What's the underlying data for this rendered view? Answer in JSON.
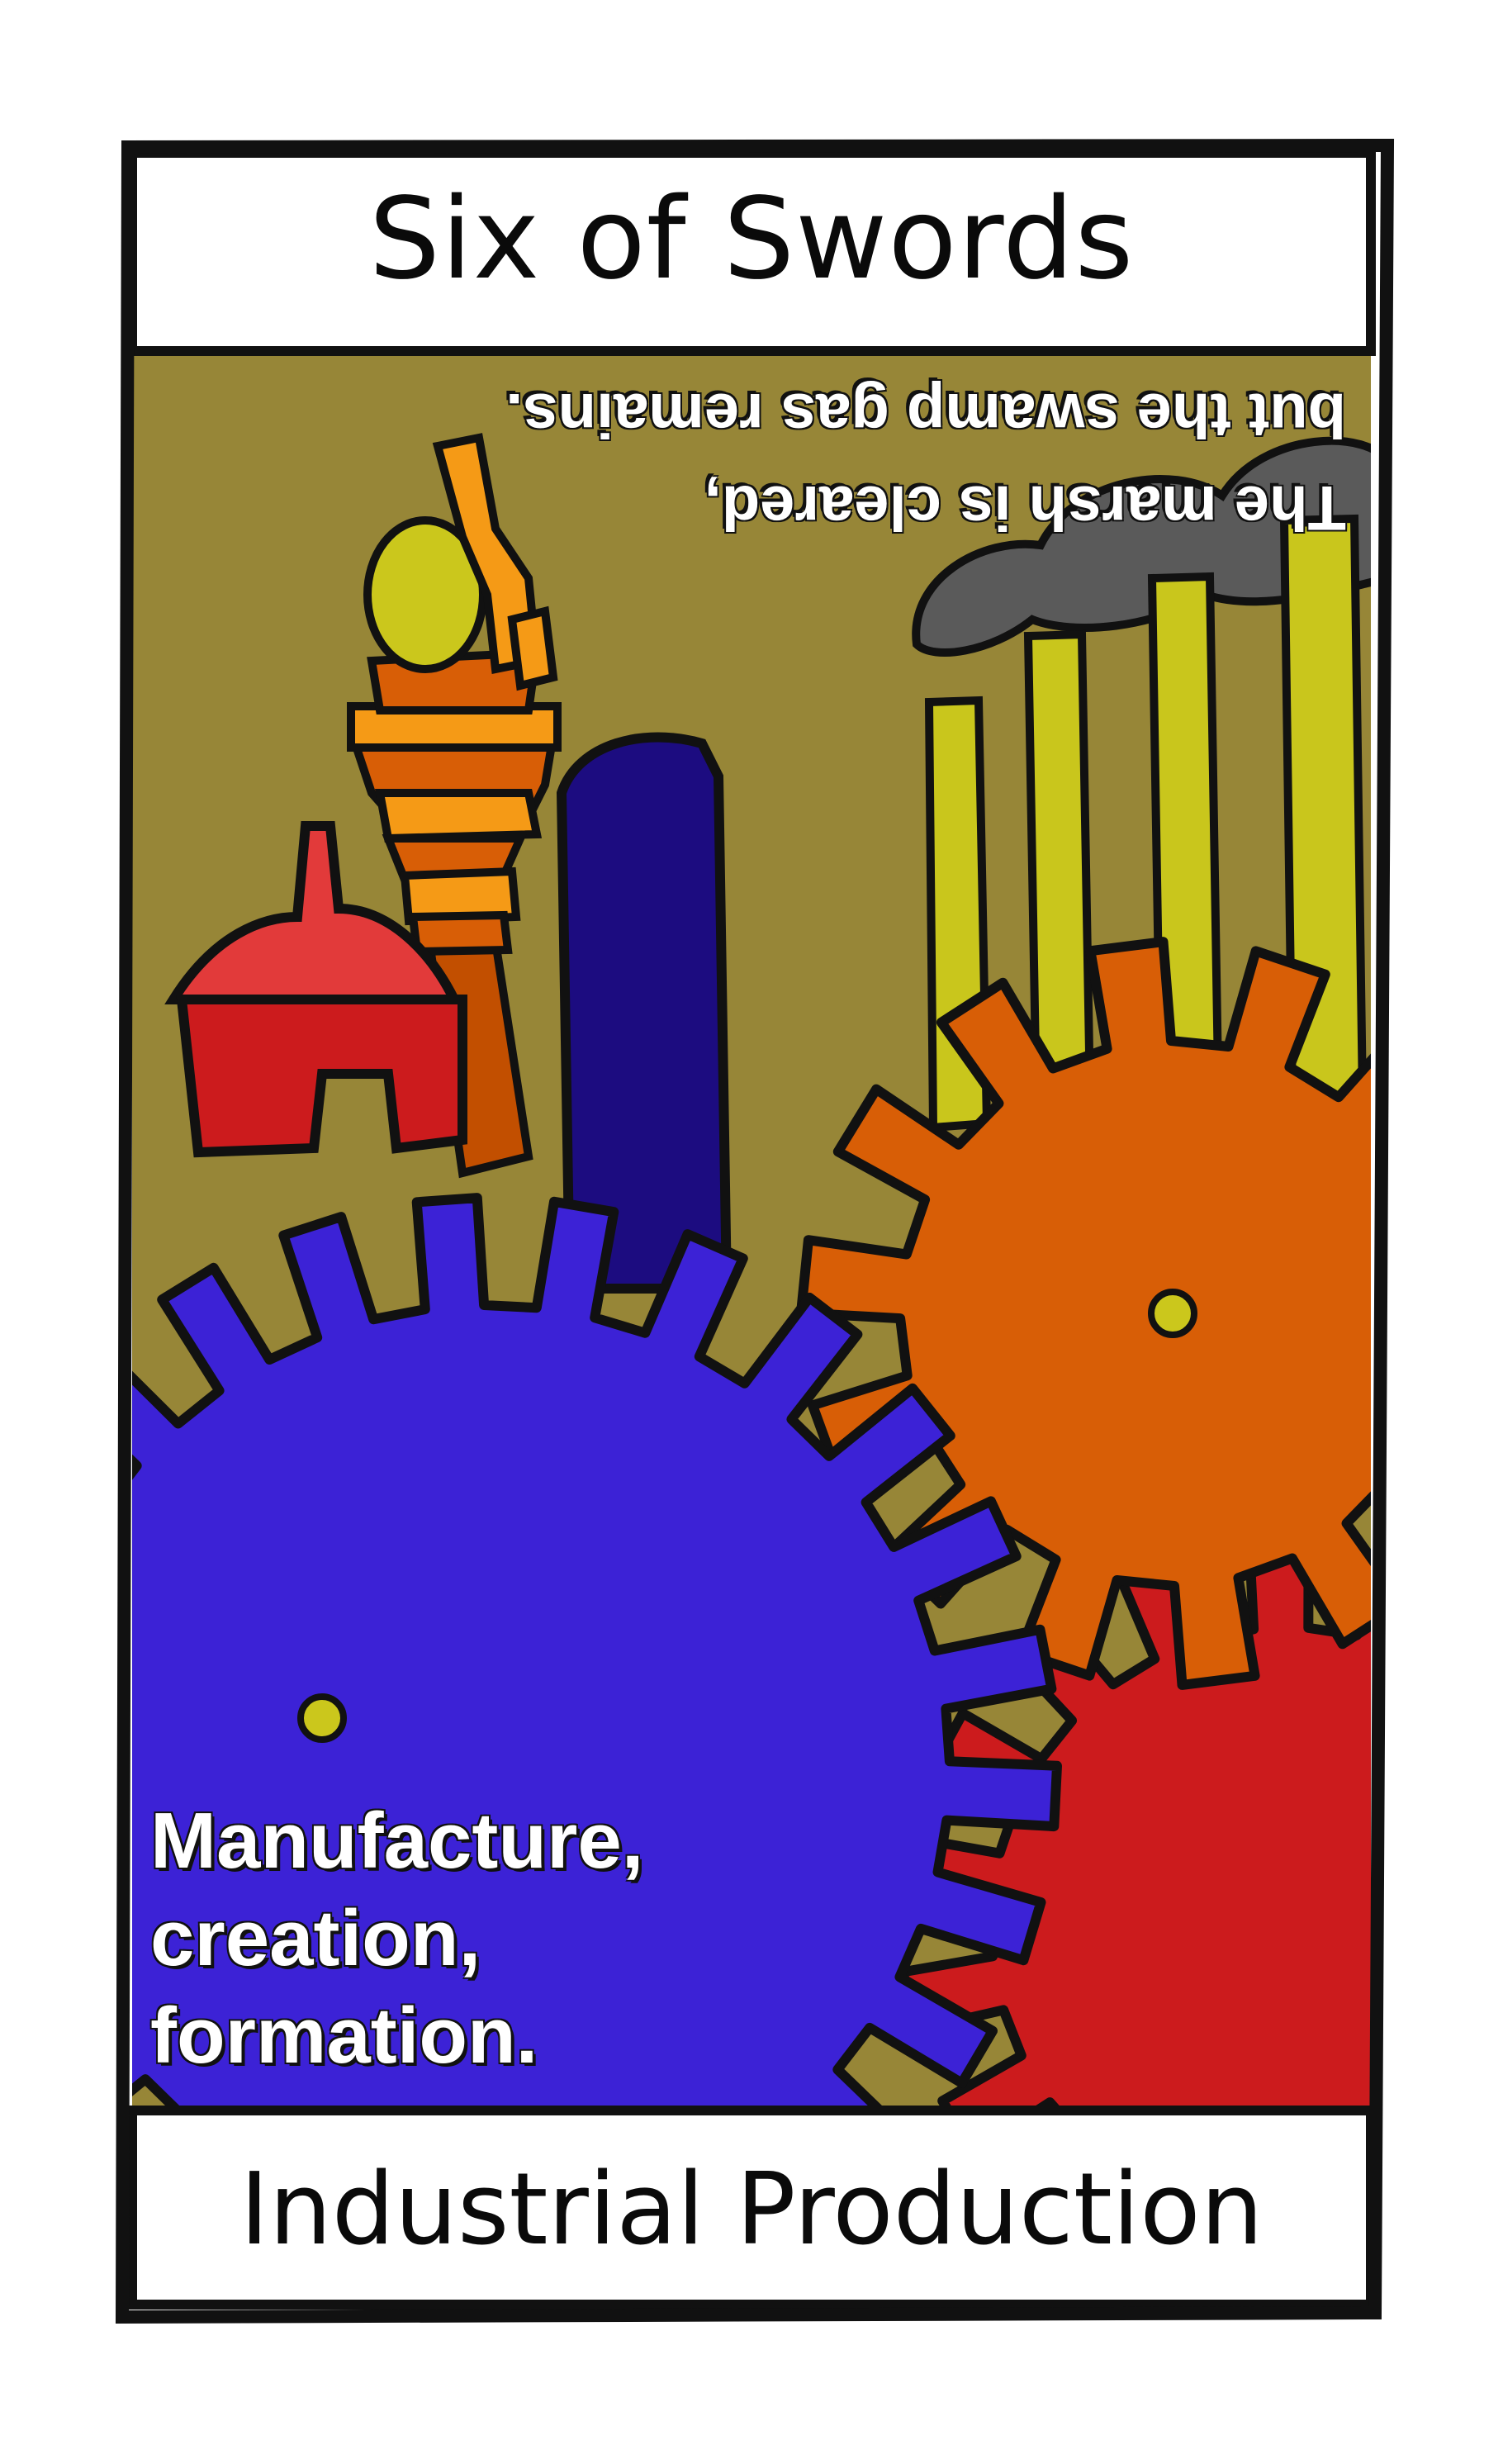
{
  "card": {
    "title": "Six of Swords",
    "subtitle": "Industrial Production",
    "reversed_caption": {
      "line1": "The marsh is cleared,",
      "line2": "but the swamp gas remains."
    },
    "keywords": [
      "Manufacture,",
      "creation,",
      "formation."
    ]
  },
  "icons": {
    "gears": "gear-icon",
    "smokestacks": "smokestack-icon",
    "towers": "tower-icon"
  },
  "colors": {
    "frame": "#111111",
    "sky": "#978637",
    "blue_gear": "#3c22d6",
    "orange_gear": "#d85e06",
    "red_gear": "#cc1b1d",
    "stacks": "#c9c61c",
    "smoke": "#5a5a5a",
    "tower_dark": "#1c0c80"
  }
}
